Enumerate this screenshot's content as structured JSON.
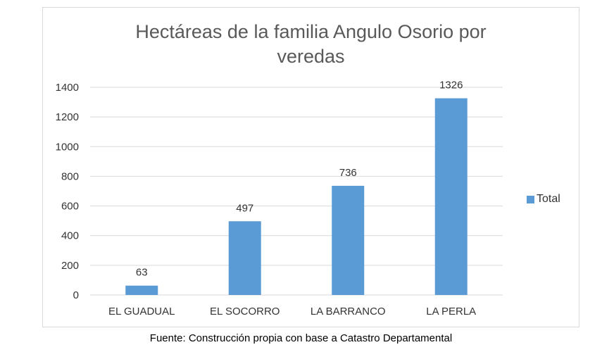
{
  "chart_data": {
    "type": "bar",
    "title": "Hectáreas de la familia Angulo Osorio por veredas",
    "title_lines": [
      "Hectáreas de la familia Angulo Osorio por",
      "veredas"
    ],
    "categories": [
      "EL GUADUAL",
      "EL SOCORRO",
      "LA BARRANCO",
      "LA PERLA"
    ],
    "series": [
      {
        "name": "Total",
        "values": [
          63,
          497,
          736,
          1326
        ]
      }
    ],
    "data_labels": [
      "63",
      "497",
      "736",
      "1326"
    ],
    "yticks": [
      0,
      200,
      400,
      600,
      800,
      1000,
      1200,
      1400
    ],
    "ylim": [
      0,
      1400
    ],
    "grid": true,
    "legend_position": "right",
    "bar_color": "#5b9bd5",
    "grid_color": "#d9d9d9"
  },
  "source": "Fuente: Construcción propia con base a Catastro Departamental"
}
